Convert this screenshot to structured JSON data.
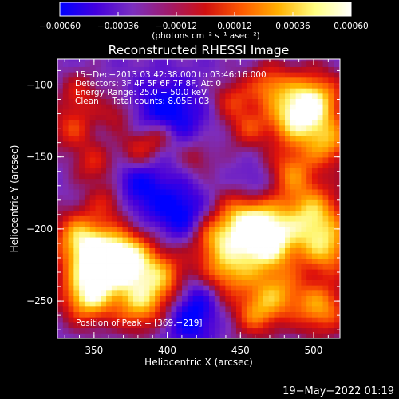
{
  "chart_data": {
    "type": "heatmap",
    "title": "Reconstructed RHESSI Image",
    "xlabel": "Heliocentric X (arcsec)",
    "ylabel": "Heliocentric Y (arcsec)",
    "xlim": [
      325,
      518
    ],
    "ylim": [
      -276,
      -82
    ],
    "xticks": [
      350,
      400,
      450,
      500
    ],
    "yticks": [
      -100,
      -150,
      -200,
      -250
    ],
    "xtick_labels": [
      "350",
      "400",
      "450",
      "500"
    ],
    "ytick_labels": [
      "−100",
      "−150",
      "−200",
      "−250"
    ],
    "colorbar": {
      "range": [
        -0.0006,
        0.0006
      ],
      "ticks": [
        -0.0006,
        -0.00036,
        -0.00012,
        0.00012,
        0.00036,
        0.0006
      ],
      "tick_labels": [
        "−0.00060",
        "−0.00036",
        "−0.00012",
        "0.00012",
        "0.00036",
        "0.00060"
      ],
      "unit_label": "(photons cm⁻² s⁻¹ asec⁻²)",
      "colors": [
        "#0000ff",
        "#4400dd",
        "#7b2fbf",
        "#a01a6a",
        "#d11010",
        "#ff5a00",
        "#ffb000",
        "#ffff80",
        "#ffffff"
      ]
    },
    "info": [
      "15−Dec−2013 03:42:38.000 to 03:46:16.000",
      "Detectors: 3F 4F 5F 6F 7F 8F, Att 0",
      "Energy Range: 25.0 − 50.0 keV",
      "Clean     Total counts: 8.05E+03"
    ],
    "peak_label": "Position of Peak = [369,−219]",
    "peak_position": [
      369,
      -219
    ],
    "grid": false,
    "legend": "none"
  },
  "footer": {
    "timestamp": "19−May−2022 01:19"
  }
}
